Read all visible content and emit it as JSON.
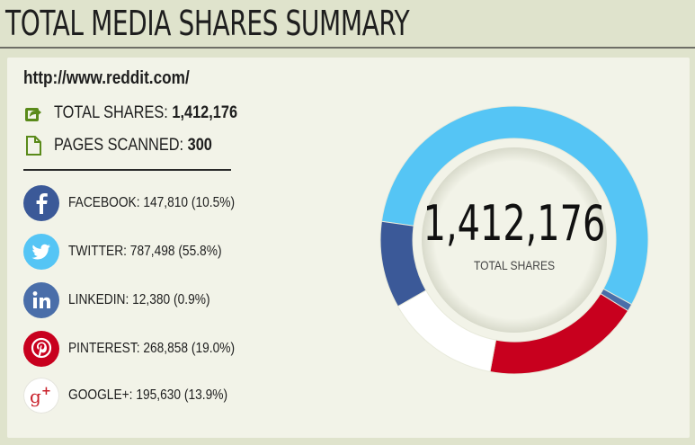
{
  "header": {
    "title": "TOTAL MEDIA SHARES SUMMARY"
  },
  "summary": {
    "url": "http://www.reddit.com/",
    "total_label": "TOTAL SHARES:",
    "total_value": "1,412,176",
    "pages_label": "PAGES SCANNED:",
    "pages_value": "300"
  },
  "networks": [
    {
      "text": "FACEBOOK: 147,810 (10.5%)",
      "icon": "facebook-icon",
      "color": "#3b5998"
    },
    {
      "text": "TWITTER: 787,498 (55.8%)",
      "icon": "twitter-icon",
      "color": "#55c5f5"
    },
    {
      "text": "LINKEDIN: 12,380 (0.9%)",
      "icon": "linkedin-icon",
      "color": "#4a6ea9"
    },
    {
      "text": "PINTEREST: 268,858 (19.0%)",
      "icon": "pinterest-icon",
      "color": "#c8001e"
    },
    {
      "text": "GOOGLE+: 195,630 (13.9%)",
      "icon": "google-plus-icon",
      "color": "#ffffff"
    }
  ],
  "chart_data": {
    "type": "pie",
    "title": "",
    "center_value": "1,412,176",
    "center_label": "TOTAL SHARES",
    "slices": [
      {
        "name": "TWITTER",
        "value": 787498,
        "color": "#55c5f5"
      },
      {
        "name": "LINKEDIN",
        "value": 12380,
        "color": "#4a6ea9"
      },
      {
        "name": "PINTEREST",
        "value": 268858,
        "color": "#c8001e"
      },
      {
        "name": "GOOGLE+",
        "value": 195630,
        "color": "#ffffff"
      },
      {
        "name": "FACEBOOK",
        "value": 147810,
        "color": "#3b5998"
      }
    ]
  }
}
